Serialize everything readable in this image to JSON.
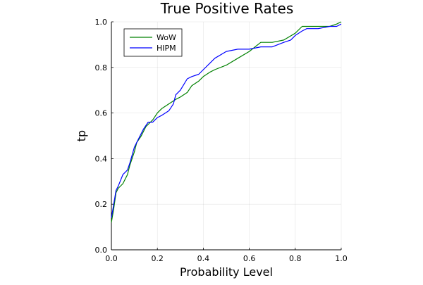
{
  "chart_data": {
    "type": "line",
    "title": "True Positive Rates",
    "xlabel": "Probability Level",
    "ylabel": "tp",
    "xlim": [
      0,
      1
    ],
    "ylim": [
      0,
      1
    ],
    "xticks": [
      "0.0",
      "0.2",
      "0.4",
      "0.6",
      "0.8",
      "1.0"
    ],
    "yticks": [
      "0.0",
      "0.2",
      "0.4",
      "0.6",
      "0.8",
      "1.0"
    ],
    "grid": true,
    "legend_position": "top-left",
    "series": [
      {
        "name": "WoW",
        "color": "#008000",
        "x": [
          0.0,
          0.01,
          0.02,
          0.03,
          0.05,
          0.07,
          0.08,
          0.1,
          0.11,
          0.13,
          0.15,
          0.18,
          0.2,
          0.22,
          0.25,
          0.28,
          0.3,
          0.33,
          0.35,
          0.38,
          0.4,
          0.43,
          0.45,
          0.5,
          0.55,
          0.6,
          0.65,
          0.7,
          0.75,
          0.8,
          0.83,
          0.85,
          0.9,
          0.95,
          0.98,
          1.0
        ],
        "y": [
          0.12,
          0.18,
          0.25,
          0.27,
          0.29,
          0.33,
          0.37,
          0.43,
          0.47,
          0.5,
          0.54,
          0.57,
          0.6,
          0.62,
          0.64,
          0.66,
          0.67,
          0.69,
          0.72,
          0.74,
          0.76,
          0.78,
          0.79,
          0.81,
          0.84,
          0.87,
          0.91,
          0.91,
          0.92,
          0.95,
          0.98,
          0.98,
          0.98,
          0.98,
          0.99,
          1.0
        ]
      },
      {
        "name": "HIPM",
        "color": "#0000ff",
        "x": [
          0.0,
          0.01,
          0.02,
          0.03,
          0.05,
          0.07,
          0.08,
          0.1,
          0.12,
          0.14,
          0.16,
          0.18,
          0.2,
          0.22,
          0.25,
          0.27,
          0.28,
          0.3,
          0.33,
          0.35,
          0.38,
          0.4,
          0.43,
          0.45,
          0.5,
          0.55,
          0.6,
          0.65,
          0.7,
          0.75,
          0.78,
          0.8,
          0.83,
          0.85,
          0.9,
          0.95,
          0.98,
          1.0
        ],
        "y": [
          0.14,
          0.2,
          0.26,
          0.28,
          0.33,
          0.35,
          0.38,
          0.45,
          0.49,
          0.53,
          0.56,
          0.56,
          0.58,
          0.59,
          0.61,
          0.64,
          0.68,
          0.7,
          0.75,
          0.76,
          0.77,
          0.79,
          0.82,
          0.84,
          0.87,
          0.88,
          0.88,
          0.89,
          0.89,
          0.91,
          0.92,
          0.94,
          0.96,
          0.97,
          0.97,
          0.98,
          0.98,
          0.99
        ]
      }
    ]
  }
}
